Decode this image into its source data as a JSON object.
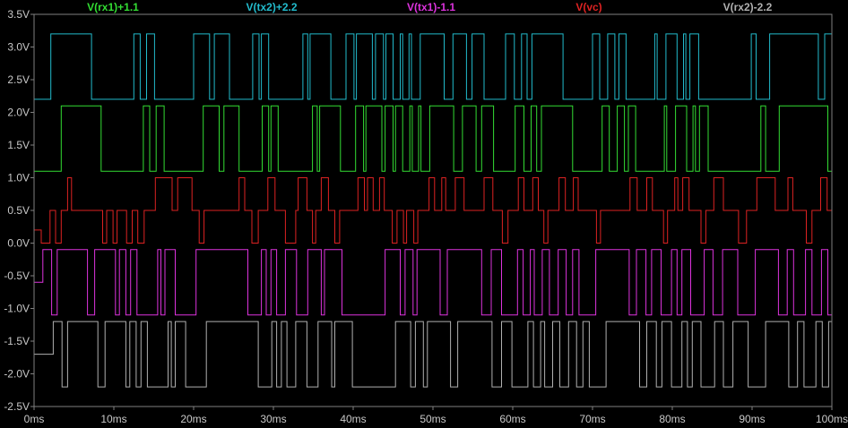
{
  "chart_data": {
    "type": "line",
    "title": "",
    "xlabel": "",
    "ylabel": "",
    "xlim": [
      0,
      100
    ],
    "ylim": [
      -2.5,
      3.5
    ],
    "grid": false,
    "background": "#000000",
    "axis_color": "#808080",
    "x_tick_labels": [
      "0ms",
      "10ms",
      "20ms",
      "30ms",
      "40ms",
      "50ms",
      "60ms",
      "70ms",
      "80ms",
      "90ms",
      "100ms"
    ],
    "x_ticks": [
      0,
      10,
      20,
      30,
      40,
      50,
      60,
      70,
      80,
      90,
      100
    ],
    "y_tick_labels": [
      "3.5V",
      "3.0V",
      "2.5V",
      "2.0V",
      "1.5V",
      "1.0V",
      "0.5V",
      "0.0V",
      "-0.5V",
      "-1.0V",
      "-1.5V",
      "-2.0V",
      "-2.5V"
    ],
    "y_ticks": [
      3.5,
      3.0,
      2.5,
      2.0,
      1.5,
      1.0,
      0.5,
      0.0,
      -0.5,
      -1.0,
      -1.5,
      -2.0,
      -2.5
    ],
    "legend_placement": "top",
    "series": [
      {
        "name": "V(rx1)+1.1",
        "color": "#33dd33",
        "low": 1.1,
        "high": 2.1,
        "initial": 1.1,
        "toggles": [
          3.4,
          8.4,
          13.7,
          14.5,
          15.3,
          16.3,
          21.2,
          23.2,
          23.8,
          25.7,
          28.6,
          29.4,
          29.7,
          30.6,
          34.9,
          35.5,
          35.8,
          38.4,
          40.3,
          41.3,
          41.6,
          43.6,
          44.0,
          45.0,
          45.3,
          46.2,
          47.1,
          47.4,
          48.2,
          48.5,
          49.6,
          52.6,
          53.7,
          55.4,
          56.1,
          57.6,
          60.3,
          61.4,
          62.3,
          63.0,
          63.6,
          67.5,
          71.2,
          72.1,
          73.1,
          74.0,
          74.5,
          75.4,
          79.0,
          79.3,
          80.4,
          81.8,
          82.6,
          82.9,
          83.4,
          84.5,
          91.1,
          91.7,
          93.4,
          99.5,
          100.0
        ]
      },
      {
        "name": "V(tx2)+2.2",
        "color": "#22bbcc",
        "low": 2.2,
        "high": 3.2,
        "initial": 2.2,
        "toggles": [
          2.1,
          7.2,
          12.5,
          13.3,
          14.1,
          15.1,
          20.0,
          22.0,
          22.6,
          24.5,
          27.4,
          28.2,
          28.5,
          29.4,
          33.7,
          34.3,
          34.6,
          37.2,
          39.1,
          40.1,
          40.4,
          42.4,
          42.8,
          43.8,
          44.1,
          45.0,
          45.9,
          46.2,
          47.0,
          47.3,
          48.4,
          51.4,
          52.5,
          54.2,
          54.9,
          56.4,
          59.1,
          60.2,
          61.1,
          61.8,
          62.4,
          66.3,
          70.0,
          70.9,
          71.9,
          72.8,
          73.3,
          74.2,
          77.8,
          78.1,
          79.2,
          80.6,
          81.4,
          81.7,
          82.2,
          83.3,
          89.9,
          90.5,
          92.2,
          98.3,
          99.1
        ]
      },
      {
        "name": "V(tx1)-1.1",
        "color": "#dd33dd",
        "low": -1.1,
        "high": -0.1,
        "initial": -0.6,
        "toggles": [
          1.1,
          2.2,
          2.9,
          6.7,
          7.6,
          10.2,
          10.7,
          11.5,
          12.1,
          12.9,
          15.5,
          15.9,
          16.4,
          17.7,
          20.3,
          26.8,
          28.5,
          29.1,
          29.7,
          30.4,
          31.5,
          32.9,
          34.3,
          36.0,
          36.4,
          38.6,
          44.0,
          45.9,
          46.5,
          47.5,
          48.0,
          50.9,
          51.8,
          56.1,
          57.3,
          58.6,
          60.6,
          61.3,
          62.2,
          62.7,
          63.7,
          64.6,
          65.7,
          66.7,
          67.5,
          68.3,
          70.4,
          74.6,
          75.5,
          76.7,
          77.4,
          78.6,
          79.9,
          80.6,
          81.2,
          82.3,
          84.0,
          85.1,
          86.3,
          88.2,
          90.4,
          93.3,
          94.4,
          95.2,
          96.7,
          97.5,
          98.7,
          99.5
        ]
      },
      {
        "name": "V(vc)",
        "color": "#dd2222",
        "levels": [
          0.0,
          0.5,
          1.0
        ],
        "steps": [
          [
            0,
            0.2
          ],
          [
            0.9,
            0.0
          ],
          [
            2.0,
            0.5
          ],
          [
            2.7,
            0.0
          ],
          [
            3.4,
            0.5
          ],
          [
            4.2,
            1.0
          ],
          [
            4.7,
            0.5
          ],
          [
            8.6,
            0.0
          ],
          [
            9.1,
            0.5
          ],
          [
            9.9,
            0.0
          ],
          [
            10.4,
            0.5
          ],
          [
            11.6,
            0.0
          ],
          [
            12.3,
            0.5
          ],
          [
            13.0,
            0.0
          ],
          [
            13.8,
            0.5
          ],
          [
            15.2,
            1.0
          ],
          [
            17.3,
            0.5
          ],
          [
            18.0,
            1.0
          ],
          [
            19.8,
            0.5
          ],
          [
            20.7,
            0.0
          ],
          [
            21.3,
            0.5
          ],
          [
            25.7,
            1.0
          ],
          [
            26.4,
            0.5
          ],
          [
            27.3,
            0.0
          ],
          [
            28.1,
            0.5
          ],
          [
            29.3,
            1.0
          ],
          [
            30.2,
            0.5
          ],
          [
            31.5,
            0.0
          ],
          [
            32.8,
            0.5
          ],
          [
            33.1,
            1.0
          ],
          [
            34.2,
            0.5
          ],
          [
            34.9,
            0.0
          ],
          [
            35.3,
            0.5
          ],
          [
            36.0,
            1.0
          ],
          [
            36.9,
            0.5
          ],
          [
            37.7,
            0.0
          ],
          [
            38.3,
            0.5
          ],
          [
            40.6,
            1.0
          ],
          [
            41.4,
            0.5
          ],
          [
            41.8,
            1.0
          ],
          [
            42.5,
            0.5
          ],
          [
            43.3,
            1.0
          ],
          [
            43.9,
            0.5
          ],
          [
            44.9,
            0.0
          ],
          [
            45.5,
            0.5
          ],
          [
            46.3,
            0.0
          ],
          [
            46.7,
            0.5
          ],
          [
            47.6,
            0.0
          ],
          [
            48.1,
            0.5
          ],
          [
            49.5,
            1.0
          ],
          [
            50.2,
            0.5
          ],
          [
            51.1,
            1.0
          ],
          [
            51.6,
            0.5
          ],
          [
            52.8,
            1.0
          ],
          [
            53.9,
            0.5
          ],
          [
            56.4,
            1.0
          ],
          [
            57.5,
            0.5
          ],
          [
            58.7,
            0.0
          ],
          [
            59.4,
            0.5
          ],
          [
            60.7,
            1.0
          ],
          [
            61.4,
            0.5
          ],
          [
            62.5,
            1.0
          ],
          [
            63.2,
            0.5
          ],
          [
            63.9,
            0.0
          ],
          [
            64.4,
            0.5
          ],
          [
            65.8,
            1.0
          ],
          [
            66.6,
            0.5
          ],
          [
            67.6,
            1.0
          ],
          [
            68.2,
            0.5
          ],
          [
            70.5,
            0.0
          ],
          [
            71.0,
            0.5
          ],
          [
            74.7,
            1.0
          ],
          [
            75.6,
            0.5
          ],
          [
            76.8,
            1.0
          ],
          [
            77.5,
            0.5
          ],
          [
            78.9,
            0.0
          ],
          [
            79.4,
            0.5
          ],
          [
            80.3,
            1.0
          ],
          [
            80.7,
            0.5
          ],
          [
            81.3,
            1.0
          ],
          [
            82.1,
            0.5
          ],
          [
            83.6,
            0.0
          ],
          [
            84.2,
            0.5
          ],
          [
            85.2,
            1.0
          ],
          [
            86.4,
            0.5
          ],
          [
            88.3,
            0.0
          ],
          [
            89.3,
            0.5
          ],
          [
            90.6,
            1.0
          ],
          [
            92.9,
            0.5
          ],
          [
            94.5,
            1.0
          ],
          [
            95.1,
            0.5
          ],
          [
            96.8,
            0.0
          ],
          [
            97.5,
            0.5
          ],
          [
            98.6,
            1.0
          ],
          [
            99.4,
            0.5
          ],
          [
            100.0,
            0.5
          ]
        ]
      },
      {
        "name": "V(rx2)-2.2",
        "color": "#b0b0b0",
        "low": -2.2,
        "high": -1.2,
        "initial": -1.7,
        "toggles": [
          2.4,
          3.5,
          4.2,
          8.0,
          8.9,
          11.5,
          12.0,
          12.8,
          13.4,
          14.2,
          16.8,
          17.2,
          17.7,
          19.0,
          21.6,
          28.1,
          29.8,
          30.4,
          31.0,
          31.7,
          32.8,
          34.2,
          35.6,
          37.3,
          37.7,
          39.9,
          45.3,
          47.2,
          47.8,
          48.8,
          49.3,
          52.2,
          53.1,
          57.4,
          58.6,
          59.9,
          61.9,
          62.6,
          63.5,
          64.0,
          65.0,
          65.9,
          67.0,
          68.0,
          68.8,
          69.6,
          71.7,
          75.9,
          76.8,
          78.0,
          78.7,
          79.9,
          81.2,
          81.9,
          82.5,
          83.6,
          85.3,
          86.4,
          87.6,
          89.5,
          91.7,
          94.6,
          95.7,
          96.5,
          98.0,
          98.8,
          99.6
        ]
      }
    ]
  }
}
